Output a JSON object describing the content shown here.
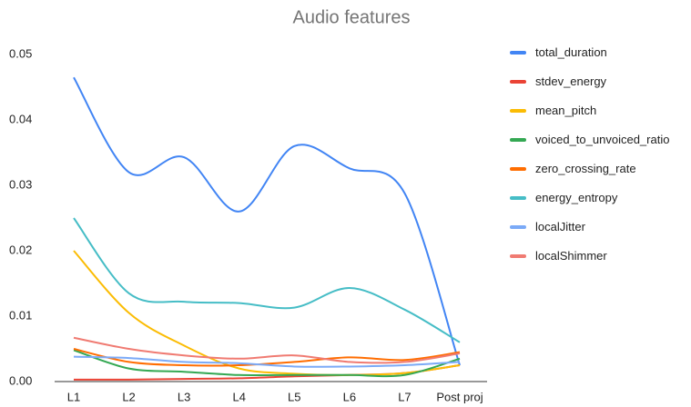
{
  "chart_data": {
    "type": "line",
    "title": "Audio features",
    "categories": [
      "L1",
      "L2",
      "L3",
      "L4",
      "L5",
      "L6",
      "L7",
      "Post proj"
    ],
    "series": [
      {
        "name": "total_duration",
        "color": "#4285f4",
        "values": [
          0.0465,
          0.032,
          0.0343,
          0.026,
          0.036,
          0.0326,
          0.0288,
          0.0025
        ]
      },
      {
        "name": "stdev_energy",
        "color": "#ea4335",
        "values": [
          0.0003,
          0.0003,
          0.0004,
          0.0005,
          0.0008,
          0.001,
          0.0013,
          0.0025
        ]
      },
      {
        "name": "mean_pitch",
        "color": "#fbbc04",
        "values": [
          0.02,
          0.0105,
          0.0055,
          0.002,
          0.0012,
          0.001,
          0.0013,
          0.0025
        ]
      },
      {
        "name": "voiced_to_unvoiced_ratio",
        "color": "#34a853",
        "values": [
          0.0048,
          0.002,
          0.0015,
          0.001,
          0.001,
          0.001,
          0.001,
          0.0035
        ]
      },
      {
        "name": "zero_crossing_rate",
        "color": "#ff6d01",
        "values": [
          0.005,
          0.003,
          0.0025,
          0.0025,
          0.003,
          0.0037,
          0.0033,
          0.0045
        ]
      },
      {
        "name": "energy_entropy",
        "color": "#46bdc6",
        "values": [
          0.025,
          0.0135,
          0.0122,
          0.012,
          0.0113,
          0.0143,
          0.011,
          0.006
        ]
      },
      {
        "name": "localJitter",
        "color": "#7baaf7",
        "values": [
          0.0038,
          0.0036,
          0.003,
          0.0028,
          0.0023,
          0.0023,
          0.0025,
          0.003
        ]
      },
      {
        "name": "localShimmer",
        "color": "#f07b72",
        "values": [
          0.0067,
          0.005,
          0.004,
          0.0035,
          0.004,
          0.003,
          0.003,
          0.0043
        ]
      }
    ],
    "ylim": [
      0,
      0.05
    ],
    "yticks": [
      {
        "value": 0,
        "label": "0.00"
      },
      0.01,
      0.02,
      0.03,
      0.04,
      0.05
    ],
    "grid": false,
    "smooth": true,
    "legend": "right"
  }
}
